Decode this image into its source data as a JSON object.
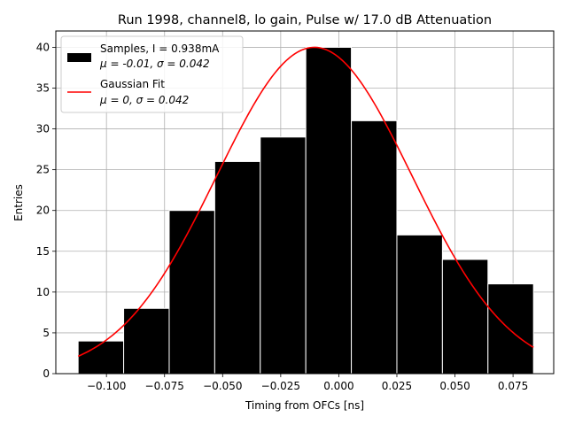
{
  "chart_data": {
    "type": "bar",
    "title": "Run 1998, channel8, lo gain, Pulse w/ 17.0 dB Attenuation",
    "xlabel": "Timing from OFCs [ns]",
    "ylabel": "Entries",
    "xlim": [
      -0.1218,
      0.0925
    ],
    "ylim": [
      0,
      42
    ],
    "xticks": [
      -0.1,
      -0.075,
      -0.05,
      -0.025,
      0.0,
      0.025,
      0.05,
      0.075
    ],
    "xtick_labels": [
      "−0.100",
      "−0.075",
      "−0.050",
      "−0.025",
      "0.000",
      "0.025",
      "0.050",
      "0.075"
    ],
    "yticks": [
      0,
      5,
      10,
      15,
      20,
      25,
      30,
      35,
      40
    ],
    "yticks_labels": [
      "0",
      "5",
      "10",
      "15",
      "20",
      "25",
      "30",
      "35",
      "40"
    ],
    "grid": true,
    "legend_position": "top-left",
    "bins": [
      {
        "x0": -0.1122,
        "x1": -0.0926,
        "value": 4
      },
      {
        "x0": -0.0926,
        "x1": -0.073,
        "value": 8
      },
      {
        "x0": -0.073,
        "x1": -0.0534,
        "value": 20
      },
      {
        "x0": -0.0534,
        "x1": -0.0338,
        "value": 26
      },
      {
        "x0": -0.0338,
        "x1": -0.0142,
        "value": 29
      },
      {
        "x0": -0.0142,
        "x1": 0.0054,
        "value": 40
      },
      {
        "x0": 0.0054,
        "x1": 0.025,
        "value": 31
      },
      {
        "x0": 0.025,
        "x1": 0.0446,
        "value": 17
      },
      {
        "x0": 0.0446,
        "x1": 0.0642,
        "value": 14
      },
      {
        "x0": 0.0642,
        "x1": 0.0838,
        "value": 11
      }
    ],
    "series": [
      {
        "name": "Samples, I = 0.938mA",
        "name_line2": "μ = -0.01, σ = 0.042",
        "type": "histogram",
        "color": "#000000"
      },
      {
        "name": "Gaussian Fit",
        "name_line2": "μ = 0, σ = 0.042",
        "type": "line",
        "color": "#ff0000",
        "mu": -0.0105,
        "sigma": 0.042,
        "amplitude": 40,
        "x_range": [
          -0.1122,
          0.0838
        ]
      }
    ]
  }
}
